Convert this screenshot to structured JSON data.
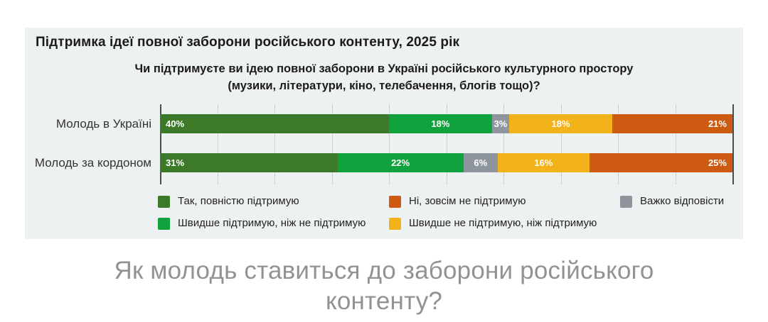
{
  "chart_data": {
    "type": "bar",
    "orientation": "horizontal",
    "stacked": true,
    "title": "Підтримка ідеї повної заборони російського контенту, 2025 рік",
    "subtitle": [
      "Чи підтримуєте ви ідею повної заборони в Україні російського культурного простору",
      "(музики, літератури, кіно, телебачення, блогів тощо)?"
    ],
    "categories": [
      "Молодь в Україні",
      "Молодь за кордоном"
    ],
    "series": [
      {
        "name": "Так, повністю підтримую",
        "color": "#3c7a2a",
        "values": [
          40,
          31
        ]
      },
      {
        "name": "Швидше підтримую, ніж не підтримую",
        "color": "#10a23c",
        "values": [
          18,
          22
        ]
      },
      {
        "name": "Важко відповісти",
        "color": "#8e959d",
        "values": [
          3,
          6
        ]
      },
      {
        "name": "Швидше не підтримую, ніж підтримую",
        "color": "#f2b219",
        "values": [
          18,
          16
        ]
      },
      {
        "name": "Ні, зовсім не підтримую",
        "color": "#cd5a10",
        "values": [
          21,
          25
        ]
      }
    ],
    "xlim": [
      0,
      100
    ],
    "grid_step": 10,
    "grid_on": true,
    "value_suffix": "%",
    "legend_position": "bottom"
  },
  "legend": {
    "columns": [
      [
        {
          "label": "Так, повністю підтримую",
          "color": "#3c7a2a"
        },
        {
          "label": "Швидше підтримую, ніж не підтримую",
          "color": "#10a23c"
        }
      ],
      [
        {
          "label": "Ні, зовсім не підтримую",
          "color": "#cd5a10"
        },
        {
          "label": "Швидше не підтримую, ніж підтримую",
          "color": "#f2b219"
        }
      ],
      [
        {
          "label": "Важко відповісти",
          "color": "#8e959d"
        }
      ]
    ]
  },
  "caption": {
    "line1": "Як молодь ставиться до заборони російського",
    "line2": "контенту?"
  },
  "colors": {
    "panel_background": "#eef1f2",
    "axis": "#4d4d4d",
    "gridline": "#a9b1b6",
    "caption_text": "#929292"
  }
}
